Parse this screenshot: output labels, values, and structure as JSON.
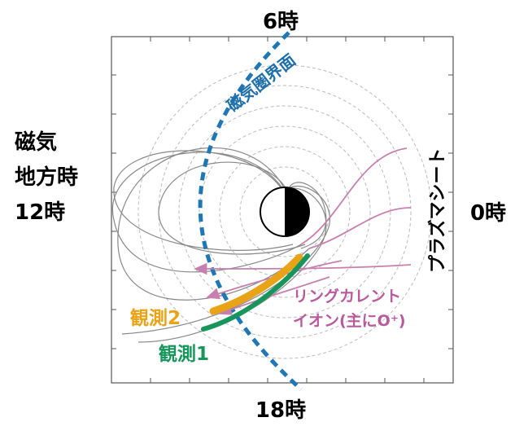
{
  "labels": {
    "top": "6時",
    "left": [
      "磁気",
      "地方時",
      "12時"
    ],
    "right": "0時",
    "bottom": "18時",
    "magnetopause": "磁気圏界面",
    "plasma_sheet": "プラズマシート",
    "ring_current": [
      "リングカレント",
      "イオン(主にO⁺)"
    ],
    "observation_2": "観測2",
    "observation_1": "観測1"
  }
}
